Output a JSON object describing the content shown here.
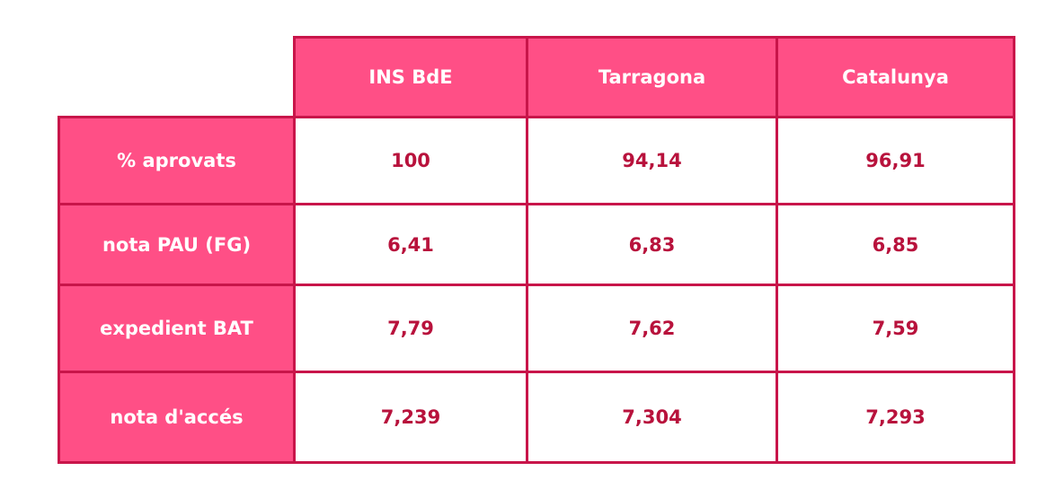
{
  "table": {
    "header": [
      "INS BdE",
      "Tarragona",
      "Catalunya"
    ],
    "rows": [
      {
        "label": "% aprovats",
        "values": [
          "100",
          "94,14",
          "96,91"
        ]
      },
      {
        "label": "nota PAU (FG)",
        "values": [
          "6,41",
          "6,83",
          "6,85"
        ]
      },
      {
        "label": "expedient BAT",
        "values": [
          "7,79",
          "7,62",
          "7,59"
        ]
      },
      {
        "label": "nota d'accés",
        "values": [
          "7,239",
          "7,304",
          "7,293"
        ]
      }
    ]
  }
}
